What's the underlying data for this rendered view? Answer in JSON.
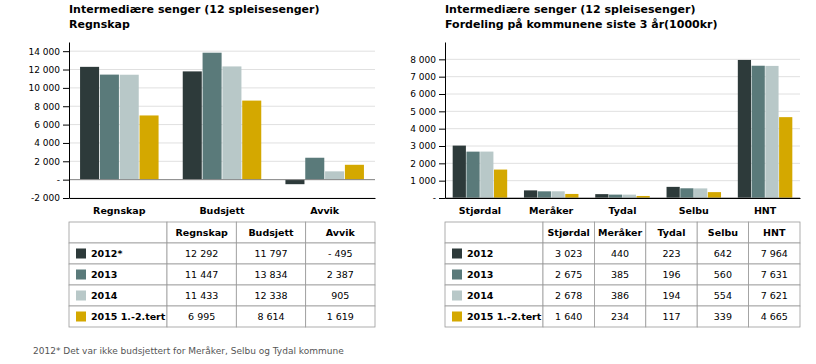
{
  "chart_data": [
    {
      "type": "bar",
      "title": "Intermediære senger (12 spleisesenger)",
      "subtitle": "Regnskap",
      "categories": [
        "Regnskap",
        "Budsjett",
        "Avvik"
      ],
      "series": [
        {
          "name": "2012*",
          "color": "#2d3a3a",
          "values": [
            12292,
            11797,
            -495
          ]
        },
        {
          "name": "2013",
          "color": "#5a7a7a",
          "values": [
            11447,
            13834,
            2387
          ]
        },
        {
          "name": "2014",
          "color": "#b8c8c8",
          "values": [
            11433,
            12338,
            905
          ]
        },
        {
          "name": "2015 1.-2.tert",
          "color": "#d4a800",
          "values": [
            6995,
            8614,
            1619
          ]
        }
      ],
      "ylim": [
        -2000,
        15000
      ],
      "yticks": [
        {
          "value": -2000,
          "label": "-2 000"
        },
        {
          "value": 0,
          "label": "-"
        },
        {
          "value": 2000,
          "label": "2 000"
        },
        {
          "value": 4000,
          "label": "4 000"
        },
        {
          "value": 6000,
          "label": "6 000"
        },
        {
          "value": 8000,
          "label": "8 000"
        },
        {
          "value": 10000,
          "label": "10 000"
        },
        {
          "value": 12000,
          "label": "12 000"
        },
        {
          "value": 14000,
          "label": "14 000"
        }
      ],
      "grid": true,
      "table": [
        [
          "12 292",
          "11 797",
          "- 495"
        ],
        [
          "11 447",
          "13 834",
          "2 387"
        ],
        [
          "11 433",
          "12 338",
          "905"
        ],
        [
          "6 995",
          "8 614",
          "1 619"
        ]
      ],
      "annotations": [
        "2012* Det var ikke budsjettert for Meråker, Selbu og Tydal kommune"
      ]
    },
    {
      "type": "bar",
      "title": "Intermediære senger (12 spleisesenger)",
      "subtitle": "Fordeling på kommunene siste 3 år(1000kr)",
      "categories": [
        "Stjørdal",
        "Meråker",
        "Tydal",
        "Selbu",
        "HNT"
      ],
      "series": [
        {
          "name": "2012",
          "color": "#2d3a3a",
          "values": [
            3023,
            440,
            223,
            642,
            7964
          ]
        },
        {
          "name": "2013",
          "color": "#5a7a7a",
          "values": [
            2675,
            385,
            196,
            560,
            7631
          ]
        },
        {
          "name": "2014",
          "color": "#b8c8c8",
          "values": [
            2678,
            386,
            194,
            554,
            7621
          ]
        },
        {
          "name": "2015 1.-2.tert",
          "color": "#d4a800",
          "values": [
            1640,
            234,
            117,
            339,
            4665
          ]
        }
      ],
      "ylim": [
        0,
        9000
      ],
      "yticks": [
        {
          "value": 0,
          "label": "-"
        },
        {
          "value": 1000,
          "label": "1 000"
        },
        {
          "value": 2000,
          "label": "2 000"
        },
        {
          "value": 3000,
          "label": "3 000"
        },
        {
          "value": 4000,
          "label": "4 000"
        },
        {
          "value": 5000,
          "label": "5 000"
        },
        {
          "value": 6000,
          "label": "6 000"
        },
        {
          "value": 7000,
          "label": "7 000"
        },
        {
          "value": 8000,
          "label": "8 000"
        }
      ],
      "grid": true,
      "table": [
        [
          "3 023",
          "440",
          "223",
          "642",
          "7 964"
        ],
        [
          "2 675",
          "385",
          "196",
          "560",
          "7 631"
        ],
        [
          "2 678",
          "386",
          "194",
          "554",
          "7 621"
        ],
        [
          "1 640",
          "234",
          "117",
          "339",
          "4 665"
        ]
      ]
    }
  ]
}
